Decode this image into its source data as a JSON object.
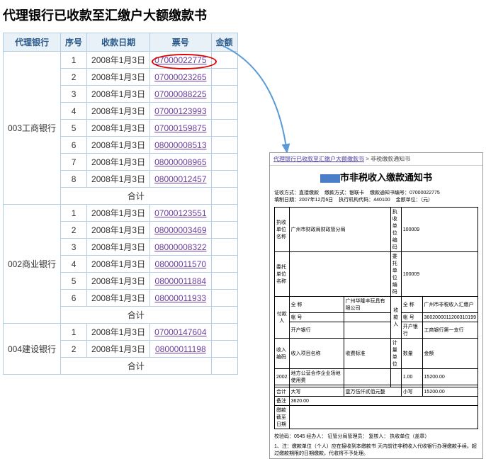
{
  "title": "代理银行已收款至汇缴户大额缴款书",
  "headers": [
    "代理银行",
    "序号",
    "收款日期",
    "票号",
    "金额"
  ],
  "banks": [
    {
      "name": "003工商银行",
      "rows": [
        {
          "n": "1",
          "d": "2008年1月3日",
          "t": "07000022775",
          "c": true
        },
        {
          "n": "2",
          "d": "2008年1月3日",
          "t": "07000023265"
        },
        {
          "n": "3",
          "d": "2008年1月3日",
          "t": "07000088225"
        },
        {
          "n": "4",
          "d": "2008年1月3日",
          "t": "07000123993"
        },
        {
          "n": "5",
          "d": "2008年1月3日",
          "t": "07000159875"
        },
        {
          "n": "6",
          "d": "2008年1月3日",
          "t": "08000008513"
        },
        {
          "n": "7",
          "d": "2008年1月3日",
          "t": "08000008965"
        },
        {
          "n": "8",
          "d": "2008年1月3日",
          "t": "08000012457"
        }
      ]
    },
    {
      "name": "002商业银行",
      "rows": [
        {
          "n": "1",
          "d": "2008年1月3日",
          "t": "07000123551"
        },
        {
          "n": "2",
          "d": "2008年1月3日",
          "t": "08000003469"
        },
        {
          "n": "3",
          "d": "2008年1月3日",
          "t": "08000008322"
        },
        {
          "n": "4",
          "d": "2008年1月3日",
          "t": "08000011570"
        },
        {
          "n": "5",
          "d": "2008年1月3日",
          "t": "08000011884"
        },
        {
          "n": "6",
          "d": "2008年1月3日",
          "t": "08000011933"
        }
      ]
    },
    {
      "name": "004建设银行",
      "rows": [
        {
          "n": "1",
          "d": "2008年1月3日",
          "t": "07000147604"
        },
        {
          "n": "2",
          "d": "2008年1月3日",
          "t": "08000011198"
        }
      ]
    }
  ],
  "subtotal": "合计",
  "doc": {
    "crumb1": "代理银行已收款至汇缴户大额缴款书",
    "crumb2": "非税缴款通知书",
    "title": "市非税收入缴款通知书",
    "meta": [
      "证收方式：直接缴款",
      "缴款方式：银联卡",
      "缴款通知书编号：07000022775",
      "填制日期：2007年12月6日",
      "执行机构代码：440100",
      "金额单位：（元）"
    ],
    "r1": [
      "执收单位名称",
      "广州市财政局财政管分局",
      "执收单位编码",
      "100009"
    ],
    "r2": [
      "委托单位名称",
      "",
      "委托单位编码",
      "100009"
    ],
    "pay_h": "付款人",
    "rec_h": "收款人",
    "p1": [
      "全   称",
      "广州华隆丰玩具有限公司",
      "全   称",
      "广州市非税收入汇缴户"
    ],
    "p2": [
      "帐   号",
      "",
      "帐   号",
      "3602000011200310199"
    ],
    "p3": [
      "开户银行",
      "",
      "开户银行",
      "工商银行第一支行"
    ],
    "ch": [
      "收入编码",
      "收入项目名称",
      "收费标准",
      "计量单位",
      "数量",
      "金额"
    ],
    "cr": [
      "2002",
      "地方公营合作企业场地使用费",
      "",
      "",
      "1.00",
      "15200.00"
    ],
    "tot": [
      "合计",
      "大写",
      "壹万伍仟贰佰元整",
      "小写",
      "15200.00"
    ],
    "note": [
      "备注",
      "3620.00"
    ],
    "due": "缴款截至日期",
    "f1": "校验码：0545            经办人：          征管分局管理员：          复核人：          执收单位（盖章）",
    "f2": "1、注：缴款单位（个人）应在接收到本缴款书        天内前往非税收入代收银行办理缴款手续。超过缴款期限的日期缴款，代收将不予处理。"
  }
}
